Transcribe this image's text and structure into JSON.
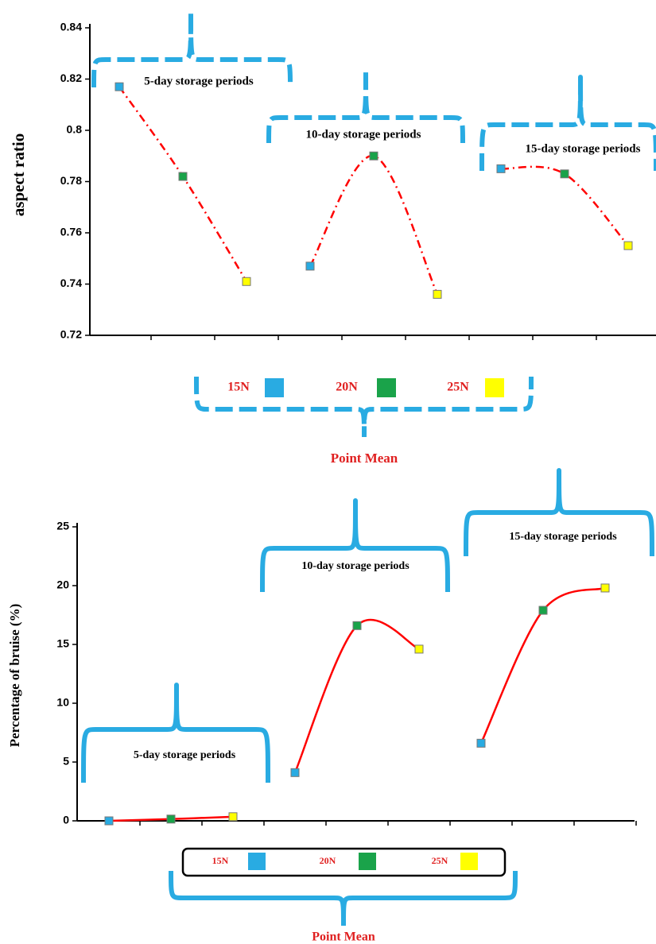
{
  "chart_data": [
    {
      "type": "line",
      "y_label": "aspect ratio",
      "ylim": [
        0.72,
        0.84
      ],
      "yticks": [
        0.72,
        0.74,
        0.76,
        0.78,
        0.8,
        0.82,
        0.84
      ],
      "line_color": "#ff0000",
      "line_style": "dashdot",
      "groups": [
        {
          "name": "5-day storage periods",
          "values": [
            0.817,
            0.782,
            0.741
          ]
        },
        {
          "name": "10-day storage periods",
          "values": [
            0.747,
            0.79,
            0.736
          ]
        },
        {
          "name": "15-day storage periods",
          "values": [
            0.785,
            0.783,
            0.755
          ]
        }
      ],
      "legend": [
        {
          "name": "15N",
          "color": "#29abe2"
        },
        {
          "name": "20N",
          "color": "#1aa34a"
        },
        {
          "name": "25N",
          "color": "#ffff00"
        }
      ],
      "legend_title": "Point Mean"
    },
    {
      "type": "line",
      "y_label": "Percentage of bruise (%)",
      "ylim": [
        0,
        25
      ],
      "yticks": [
        0,
        5,
        10,
        15,
        20,
        25
      ],
      "line_color": "#ff0000",
      "line_style": "solid",
      "groups": [
        {
          "name": "5-day storage periods",
          "values": [
            0.0,
            0.15,
            0.35
          ]
        },
        {
          "name": "10-day storage periods",
          "values": [
            4.1,
            16.6,
            14.6
          ]
        },
        {
          "name": "15-day storage periods",
          "values": [
            6.6,
            17.9,
            19.8
          ]
        }
      ],
      "legend": [
        {
          "name": "15N",
          "color": "#29abe2"
        },
        {
          "name": "20N",
          "color": "#1aa34a"
        },
        {
          "name": "25N",
          "color": "#ffff00"
        }
      ],
      "legend_title": "Point Mean"
    }
  ]
}
